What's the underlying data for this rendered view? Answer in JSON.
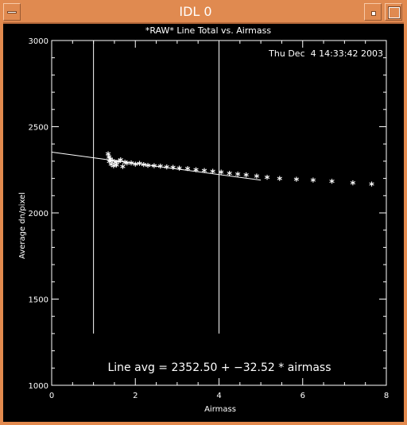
{
  "window": {
    "title": "IDL 0",
    "icons": {
      "menu": "window-menu-icon",
      "minimize": "minimize-icon",
      "maximize": "maximize-icon"
    },
    "colors": {
      "frame": "#e08a50",
      "background": "#000000",
      "foreground": "#ffffff"
    }
  },
  "chart_data": {
    "type": "scatter",
    "title": "*RAW* Line Total vs. Airmass",
    "timestamp": "Thu Dec  4 14:33:42 2003",
    "xlabel": "Airmass",
    "ylabel": "Average dn/pixel",
    "xlim": [
      0,
      8
    ],
    "ylim": [
      1000,
      3000
    ],
    "x_ticks": [
      "0",
      "2",
      "4",
      "6",
      "8"
    ],
    "y_ticks": [
      "1000",
      "1500",
      "2000",
      "2500",
      "3000"
    ],
    "grid": false,
    "fit_annotation": "Line avg = 2352.50 + −32.52 * airmass",
    "fit": {
      "intercept": 2352.5,
      "slope": -32.52,
      "x_range": [
        0,
        5
      ]
    },
    "vertical_markers": [
      {
        "x": 1,
        "y_range": [
          1300,
          3000
        ]
      },
      {
        "x": 4,
        "y_range": [
          1300,
          3000
        ]
      }
    ],
    "points": [
      {
        "x": 1.35,
        "y": 2335
      },
      {
        "x": 1.37,
        "y": 2315
      },
      {
        "x": 1.38,
        "y": 2290
      },
      {
        "x": 1.4,
        "y": 2305
      },
      {
        "x": 1.42,
        "y": 2275
      },
      {
        "x": 1.45,
        "y": 2295
      },
      {
        "x": 1.48,
        "y": 2265
      },
      {
        "x": 1.52,
        "y": 2285
      },
      {
        "x": 1.55,
        "y": 2270
      },
      {
        "x": 1.6,
        "y": 2290
      },
      {
        "x": 1.65,
        "y": 2300
      },
      {
        "x": 1.7,
        "y": 2260
      },
      {
        "x": 1.75,
        "y": 2285
      },
      {
        "x": 1.8,
        "y": 2280
      },
      {
        "x": 1.9,
        "y": 2280
      },
      {
        "x": 2.0,
        "y": 2275
      },
      {
        "x": 2.1,
        "y": 2278
      },
      {
        "x": 2.2,
        "y": 2272
      },
      {
        "x": 2.3,
        "y": 2268
      },
      {
        "x": 2.45,
        "y": 2265
      },
      {
        "x": 2.6,
        "y": 2262
      },
      {
        "x": 2.75,
        "y": 2258
      },
      {
        "x": 2.9,
        "y": 2255
      },
      {
        "x": 3.05,
        "y": 2252
      },
      {
        "x": 3.25,
        "y": 2248
      },
      {
        "x": 3.45,
        "y": 2243
      },
      {
        "x": 3.65,
        "y": 2238
      },
      {
        "x": 3.85,
        "y": 2233
      },
      {
        "x": 4.05,
        "y": 2228
      },
      {
        "x": 4.25,
        "y": 2222
      },
      {
        "x": 4.45,
        "y": 2217
      },
      {
        "x": 4.65,
        "y": 2212
      },
      {
        "x": 4.9,
        "y": 2205
      },
      {
        "x": 5.15,
        "y": 2198
      },
      {
        "x": 5.45,
        "y": 2192
      },
      {
        "x": 5.85,
        "y": 2187
      },
      {
        "x": 6.25,
        "y": 2182
      },
      {
        "x": 6.7,
        "y": 2176
      },
      {
        "x": 7.2,
        "y": 2167
      },
      {
        "x": 7.65,
        "y": 2158
      }
    ]
  }
}
